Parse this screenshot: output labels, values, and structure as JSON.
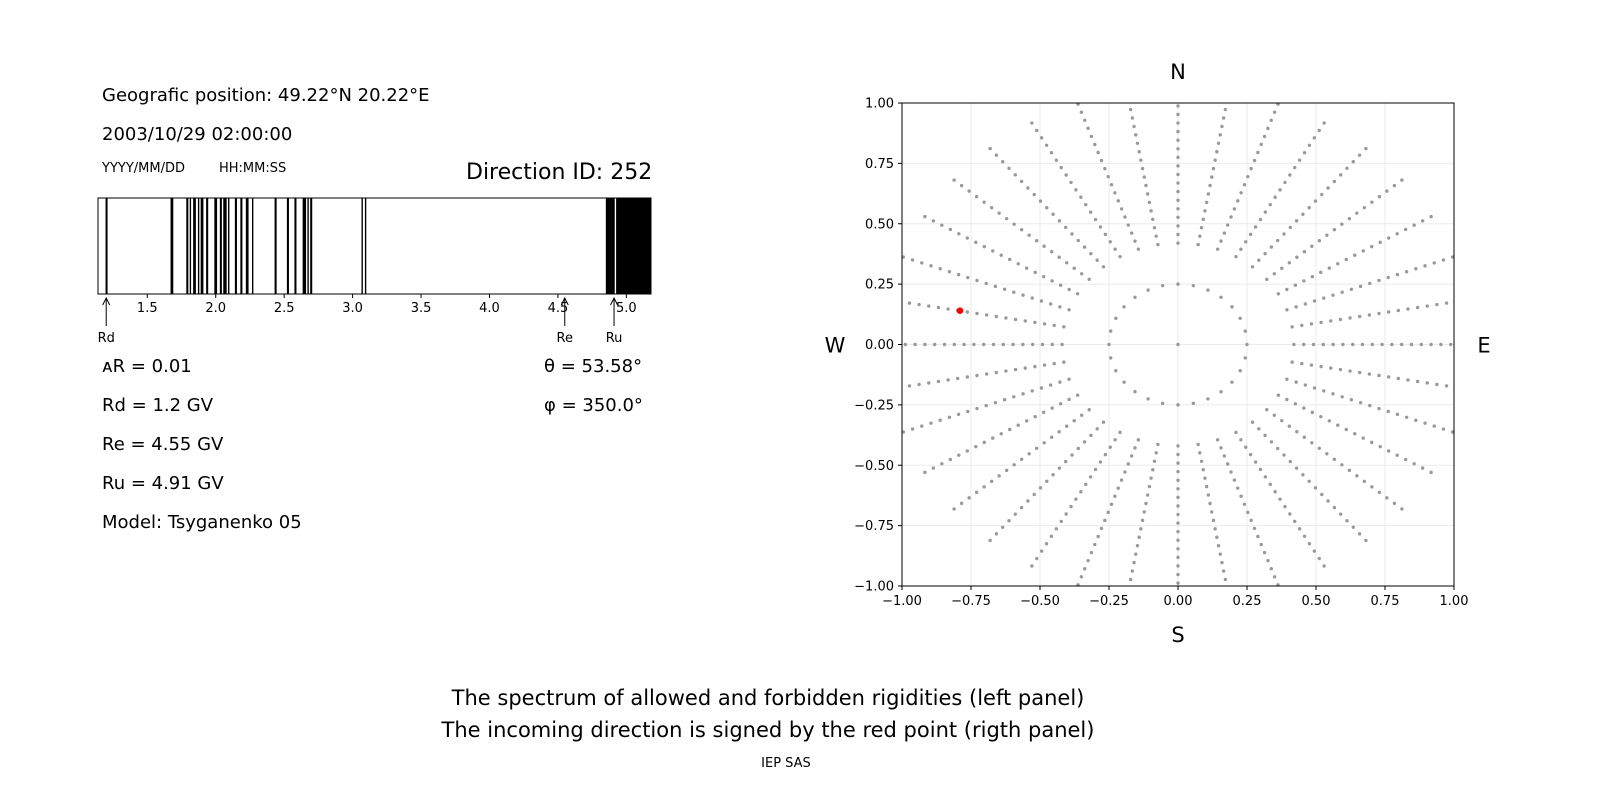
{
  "left_panel": {
    "position": "Geografic position: 49.22°N 20.22°E",
    "datetime": "2003/10/29 02:00:00",
    "date_format": "YYYY/MM/DD",
    "time_format": "HH:MM:SS",
    "direction_id": "Direction ID: 252",
    "delta_r": "ᴀR = 0.01",
    "rd": "Rd = 1.2 GV",
    "re": "Re = 4.55 GV",
    "ru": "Ru = 4.91 GV",
    "model": "Model: Tsyganenko 05",
    "theta": "θ = 53.58°",
    "phi": "φ = 350.0°"
  },
  "chart_data": [
    {
      "type": "bar",
      "xlim": [
        1.14,
        5.18
      ],
      "ticks": [
        "1.5",
        "2.0",
        "2.5",
        "3.0",
        "3.5",
        "4.0",
        "4.5",
        "5.0"
      ],
      "tick_values": [
        1.5,
        2.0,
        2.5,
        3.0,
        3.5,
        4.0,
        4.5,
        5.0
      ],
      "forbidden_bands": [
        [
          1.195,
          1.21
        ],
        [
          1.67,
          1.69
        ],
        [
          1.785,
          1.8
        ],
        [
          1.81,
          1.82
        ],
        [
          1.835,
          1.855
        ],
        [
          1.87,
          1.88
        ],
        [
          1.89,
          1.91
        ],
        [
          1.93,
          1.945
        ],
        [
          1.99,
          2.01
        ],
        [
          2.03,
          2.045
        ],
        [
          2.055,
          2.08
        ],
        [
          2.09,
          2.1
        ],
        [
          2.14,
          2.155
        ],
        [
          2.18,
          2.195
        ],
        [
          2.22,
          2.24
        ],
        [
          2.265,
          2.275
        ],
        [
          2.43,
          2.445
        ],
        [
          2.52,
          2.535
        ],
        [
          2.575,
          2.59
        ],
        [
          2.635,
          2.66
        ],
        [
          2.67,
          2.68
        ],
        [
          2.69,
          2.705
        ],
        [
          3.065,
          3.075
        ],
        [
          3.09,
          3.1
        ],
        [
          4.85,
          4.915
        ],
        [
          4.925,
          5.18
        ]
      ],
      "markers": [
        {
          "label": "Rd",
          "value": 1.2
        },
        {
          "label": "Re",
          "value": 4.55
        },
        {
          "label": "Ru",
          "value": 4.91
        }
      ]
    },
    {
      "type": "scatter",
      "xlim": [
        -1.0,
        1.0
      ],
      "ylim": [
        -1.0,
        1.0
      ],
      "xticks": [
        "−1.00",
        "−0.75",
        "−0.50",
        "−0.25",
        "0.00",
        "0.25",
        "0.50",
        "0.75",
        "1.00"
      ],
      "yticks": [
        "1.00",
        "0.75",
        "0.50",
        "0.25",
        "0.00",
        "−0.25",
        "−0.50",
        "−0.75",
        "−1.00"
      ],
      "tick_values": [
        -1.0,
        -0.75,
        -0.5,
        -0.25,
        0.0,
        0.25,
        0.5,
        0.75,
        1.0
      ],
      "grid": true,
      "compass": {
        "north": "N",
        "south": "S",
        "east": "E",
        "west": "W"
      },
      "grid_points": {
        "color": "#999999",
        "center": [
          0,
          0
        ],
        "inner_ring_radius": 0.25,
        "inner_ring_count": 28,
        "radial_lines": 36,
        "radial_spacing": 0.0355,
        "outer_limit": 1.0
      },
      "selected_point": {
        "x": -0.79,
        "y": 0.14,
        "color": "#ff0000"
      }
    }
  ],
  "caption": {
    "line1": "The spectrum of allowed and forbidden rigidities (left panel)",
    "line2": "The incoming direction is signed by the red point (rigth panel)",
    "credit": "IEP SAS"
  }
}
